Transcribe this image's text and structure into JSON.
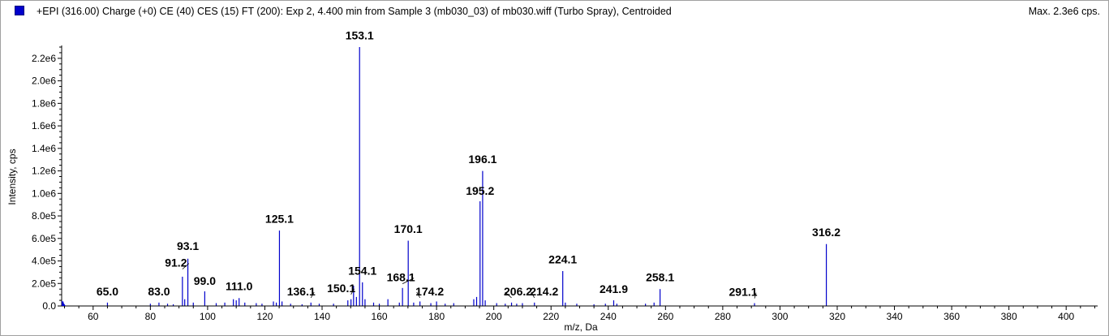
{
  "header": {
    "title": "+EPI (316.00) Charge (+0) CE (40) CES (15) FT (200): Exp 2, 4.400 min from Sample 3 (mb030_03) of mb030.wiff (Turbo Spray), Centroided",
    "max_label": "Max. 2.3e6 cps."
  },
  "colors": {
    "peak": "#0000cc",
    "axis": "#000000",
    "legend": "#0000cc"
  },
  "chart_data": {
    "type": "bar",
    "title": "",
    "xlabel": "m/z, Da",
    "ylabel": "Intensity, cps",
    "xlim": [
      49,
      411
    ],
    "ylim": [
      0,
      2300000
    ],
    "x_ticks": [
      60,
      80,
      100,
      120,
      140,
      160,
      180,
      200,
      220,
      240,
      260,
      280,
      300,
      320,
      340,
      360,
      380,
      400
    ],
    "x_tick_labels": [
      "60",
      "80",
      "100",
      "120",
      "140",
      "160",
      "180",
      "200",
      "220",
      "240",
      "260",
      "280",
      "300",
      "320",
      "340",
      "360",
      "380",
      "400"
    ],
    "y_ticks": [
      0,
      200000,
      400000,
      600000,
      800000,
      1000000,
      1200000,
      1400000,
      1600000,
      1800000,
      2000000,
      2200000
    ],
    "y_tick_labels": [
      "0.0",
      "2.0e5",
      "4.0e5",
      "6.0e5",
      "8.0e5",
      "1.0e6",
      "1.2e6",
      "1.4e6",
      "1.6e6",
      "1.8e6",
      "2.0e6",
      "2.2e6"
    ],
    "peaks": [
      {
        "mz": 49.5,
        "intensity": 40000
      },
      {
        "mz": 65.0,
        "intensity": 30000
      },
      {
        "mz": 80.0,
        "intensity": 20000
      },
      {
        "mz": 83.0,
        "intensity": 30000
      },
      {
        "mz": 86.0,
        "intensity": 20000
      },
      {
        "mz": 88.0,
        "intensity": 15000
      },
      {
        "mz": 91.2,
        "intensity": 260000
      },
      {
        "mz": 92.0,
        "intensity": 60000
      },
      {
        "mz": 93.1,
        "intensity": 420000
      },
      {
        "mz": 95.0,
        "intensity": 30000
      },
      {
        "mz": 99.0,
        "intensity": 130000
      },
      {
        "mz": 103.0,
        "intensity": 25000
      },
      {
        "mz": 106.0,
        "intensity": 30000
      },
      {
        "mz": 109.0,
        "intensity": 60000
      },
      {
        "mz": 110.0,
        "intensity": 50000
      },
      {
        "mz": 111.0,
        "intensity": 70000
      },
      {
        "mz": 113.0,
        "intensity": 30000
      },
      {
        "mz": 117.0,
        "intensity": 25000
      },
      {
        "mz": 119.0,
        "intensity": 20000
      },
      {
        "mz": 123.0,
        "intensity": 40000
      },
      {
        "mz": 124.0,
        "intensity": 30000
      },
      {
        "mz": 125.1,
        "intensity": 670000
      },
      {
        "mz": 126.0,
        "intensity": 40000
      },
      {
        "mz": 129.0,
        "intensity": 20000
      },
      {
        "mz": 133.0,
        "intensity": 15000
      },
      {
        "mz": 136.1,
        "intensity": 30000
      },
      {
        "mz": 139.0,
        "intensity": 20000
      },
      {
        "mz": 144.0,
        "intensity": 20000
      },
      {
        "mz": 149.0,
        "intensity": 50000
      },
      {
        "mz": 150.1,
        "intensity": 60000
      },
      {
        "mz": 151.0,
        "intensity": 180000
      },
      {
        "mz": 152.0,
        "intensity": 80000
      },
      {
        "mz": 153.1,
        "intensity": 2300000
      },
      {
        "mz": 154.1,
        "intensity": 210000
      },
      {
        "mz": 155.0,
        "intensity": 60000
      },
      {
        "mz": 158.0,
        "intensity": 30000
      },
      {
        "mz": 160.0,
        "intensity": 20000
      },
      {
        "mz": 163.0,
        "intensity": 60000
      },
      {
        "mz": 167.0,
        "intensity": 30000
      },
      {
        "mz": 168.1,
        "intensity": 160000
      },
      {
        "mz": 170.1,
        "intensity": 580000
      },
      {
        "mz": 172.0,
        "intensity": 30000
      },
      {
        "mz": 174.2,
        "intensity": 40000
      },
      {
        "mz": 178.0,
        "intensity": 25000
      },
      {
        "mz": 180.0,
        "intensity": 40000
      },
      {
        "mz": 183.0,
        "intensity": 20000
      },
      {
        "mz": 186.0,
        "intensity": 25000
      },
      {
        "mz": 193.0,
        "intensity": 60000
      },
      {
        "mz": 194.0,
        "intensity": 80000
      },
      {
        "mz": 195.2,
        "intensity": 930000
      },
      {
        "mz": 196.1,
        "intensity": 1200000
      },
      {
        "mz": 197.0,
        "intensity": 50000
      },
      {
        "mz": 201.0,
        "intensity": 25000
      },
      {
        "mz": 204.0,
        "intensity": 20000
      },
      {
        "mz": 206.2,
        "intensity": 30000
      },
      {
        "mz": 208.0,
        "intensity": 20000
      },
      {
        "mz": 210.0,
        "intensity": 25000
      },
      {
        "mz": 214.2,
        "intensity": 30000
      },
      {
        "mz": 224.1,
        "intensity": 310000
      },
      {
        "mz": 225.0,
        "intensity": 30000
      },
      {
        "mz": 229.0,
        "intensity": 20000
      },
      {
        "mz": 235.0,
        "intensity": 15000
      },
      {
        "mz": 239.0,
        "intensity": 20000
      },
      {
        "mz": 241.9,
        "intensity": 50000
      },
      {
        "mz": 243.0,
        "intensity": 20000
      },
      {
        "mz": 253.0,
        "intensity": 20000
      },
      {
        "mz": 256.0,
        "intensity": 30000
      },
      {
        "mz": 258.1,
        "intensity": 150000
      },
      {
        "mz": 291.1,
        "intensity": 25000
      },
      {
        "mz": 316.2,
        "intensity": 550000
      }
    ],
    "peak_labels": [
      {
        "mz": 65.0,
        "text": "65.0",
        "intensity": 65000
      },
      {
        "mz": 83.0,
        "text": "83.0",
        "intensity": 65000
      },
      {
        "mz": 91.2,
        "text": "91.2",
        "intensity": 320000,
        "dx": -8
      },
      {
        "mz": 93.1,
        "text": "93.1",
        "intensity": 470000
      },
      {
        "mz": 99.0,
        "text": "99.0",
        "intensity": 160000
      },
      {
        "mz": 111.0,
        "text": "111.0",
        "intensity": 110000
      },
      {
        "mz": 125.1,
        "text": "125.1",
        "intensity": 710000
      },
      {
        "mz": 136.1,
        "text": "136.1",
        "intensity": 65000,
        "dx": -12
      },
      {
        "mz": 150.1,
        "text": "150.1",
        "intensity": 95000,
        "dx": -12
      },
      {
        "mz": 153.1,
        "text": "153.1",
        "intensity": 2340000
      },
      {
        "mz": 154.1,
        "text": "154.1",
        "intensity": 250000
      },
      {
        "mz": 168.1,
        "text": "168.1",
        "intensity": 190000,
        "dx": -2
      },
      {
        "mz": 170.1,
        "text": "170.1",
        "intensity": 620000
      },
      {
        "mz": 174.2,
        "text": "174.2",
        "intensity": 65000,
        "dx": 12
      },
      {
        "mz": 195.2,
        "text": "195.2",
        "intensity": 960000
      },
      {
        "mz": 196.1,
        "text": "196.1",
        "intensity": 1240000
      },
      {
        "mz": 206.2,
        "text": "206.2",
        "intensity": 65000,
        "dx": 8
      },
      {
        "mz": 214.2,
        "text": "214.2",
        "intensity": 65000,
        "dx": 12
      },
      {
        "mz": 224.1,
        "text": "224.1",
        "intensity": 350000
      },
      {
        "mz": 241.9,
        "text": "241.9",
        "intensity": 85000
      },
      {
        "mz": 258.1,
        "text": "258.1",
        "intensity": 190000
      },
      {
        "mz": 291.1,
        "text": "291.1",
        "intensity": 60000,
        "dx": -14
      },
      {
        "mz": 316.2,
        "text": "316.2",
        "intensity": 590000
      }
    ]
  }
}
